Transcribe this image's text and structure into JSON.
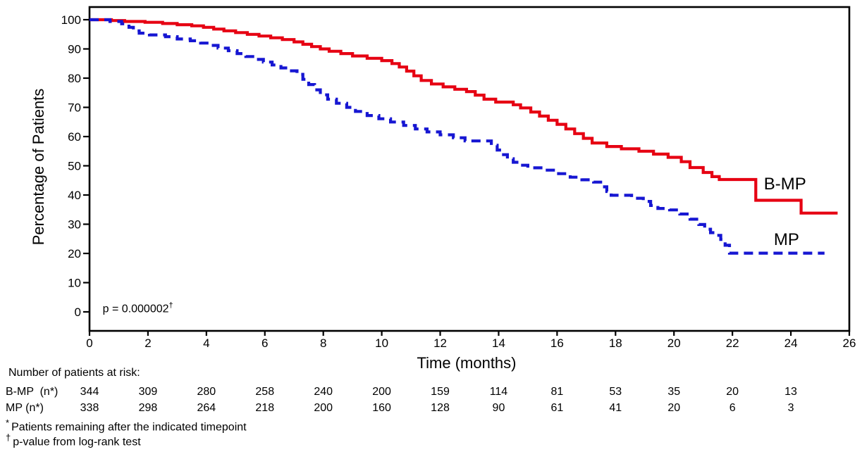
{
  "figure": {
    "p_value": {
      "text": "p = 0.000002",
      "marker": "†"
    },
    "risk_table": {
      "header": "Number of patients at risk:",
      "count_months": [
        0,
        2,
        4,
        6,
        8,
        10,
        12,
        14,
        16,
        18,
        20,
        22,
        24
      ],
      "rows": [
        {
          "label": "B-MP  (n*)",
          "counts": [
            344,
            309,
            280,
            258,
            240,
            200,
            159,
            114,
            81,
            53,
            35,
            20,
            13
          ]
        },
        {
          "label": "MP (n*)",
          "counts": [
            338,
            298,
            264,
            218,
            200,
            160,
            128,
            90,
            61,
            41,
            20,
            6,
            3
          ]
        }
      ]
    },
    "footnotes": [
      {
        "marker": "*",
        "text": "Patients remaining after the indicated timepoint"
      },
      {
        "marker": "†",
        "text": "p-value from log-rank test"
      }
    ]
  },
  "chart_data": {
    "type": "line",
    "subtype": "kaplan-meier-step",
    "title": "",
    "xlabel": "Time (months)",
    "ylabel": "Percentage of Patients",
    "xlim": [
      0,
      26
    ],
    "ylim": [
      0,
      100
    ],
    "x_ticks": [
      0,
      2,
      4,
      6,
      8,
      10,
      12,
      14,
      16,
      18,
      20,
      22,
      24,
      26
    ],
    "y_ticks": [
      0,
      10,
      20,
      30,
      40,
      50,
      60,
      70,
      80,
      90,
      100
    ],
    "grid": false,
    "legend_position": "inline-right",
    "annotation": {
      "text": "p = 0.000002",
      "marker": "†",
      "x": 0.45,
      "y": 1.5
    },
    "series": [
      {
        "name": "B-MP",
        "color": "#e60012",
        "style": "solid",
        "line_width": 4.2,
        "label_pos": {
          "x": 23.8,
          "y": 43.5
        },
        "points": [
          [
            0,
            100
          ],
          [
            0.75,
            100
          ],
          [
            0.75,
            99.7
          ],
          [
            1.2,
            99.4
          ],
          [
            1.9,
            99.1
          ],
          [
            2.5,
            98.7
          ],
          [
            3,
            98.3
          ],
          [
            3.5,
            97.9
          ],
          [
            3.9,
            97.4
          ],
          [
            4.25,
            96.8
          ],
          [
            4.6,
            96.2
          ],
          [
            5,
            95.6
          ],
          [
            5.4,
            95
          ],
          [
            5.8,
            94.4
          ],
          [
            6.2,
            93.8
          ],
          [
            6.6,
            93.2
          ],
          [
            7,
            92.4
          ],
          [
            7.3,
            91.6
          ],
          [
            7.6,
            90.8
          ],
          [
            7.9,
            90
          ],
          [
            8.2,
            89.2
          ],
          [
            8.6,
            88.4
          ],
          [
            9,
            87.6
          ],
          [
            9.5,
            86.8
          ],
          [
            10,
            86
          ],
          [
            10.35,
            85
          ],
          [
            10.6,
            83.8
          ],
          [
            10.85,
            82.4
          ],
          [
            11.1,
            80.8
          ],
          [
            11.35,
            79.2
          ],
          [
            11.7,
            78
          ],
          [
            12.1,
            77
          ],
          [
            12.5,
            76.2
          ],
          [
            12.9,
            75.4
          ],
          [
            13.2,
            74.2
          ],
          [
            13.5,
            72.8
          ],
          [
            13.9,
            71.8
          ],
          [
            14.5,
            70.9
          ],
          [
            14.75,
            69.8
          ],
          [
            15.1,
            68.4
          ],
          [
            15.4,
            67
          ],
          [
            15.7,
            65.6
          ],
          [
            16,
            64.2
          ],
          [
            16.3,
            62.6
          ],
          [
            16.6,
            61
          ],
          [
            16.9,
            59.4
          ],
          [
            17.2,
            57.8
          ],
          [
            17.7,
            56.6
          ],
          [
            18.2,
            55.8
          ],
          [
            18.8,
            55
          ],
          [
            19.3,
            54
          ],
          [
            19.8,
            52.9
          ],
          [
            20.25,
            51.4
          ],
          [
            20.55,
            49.4
          ],
          [
            21,
            47.7
          ],
          [
            21.3,
            46.3
          ],
          [
            21.55,
            45.3
          ],
          [
            22.8,
            38.2
          ],
          [
            24.35,
            33.8
          ],
          [
            25.6,
            33.8
          ]
        ]
      },
      {
        "name": "MP",
        "color": "#1616d2",
        "style": "dashed",
        "line_width": 4.2,
        "label_pos": {
          "x": 23.85,
          "y": 24.5
        },
        "points": [
          [
            0,
            100
          ],
          [
            0.7,
            100
          ],
          [
            0.7,
            99.4
          ],
          [
            1.1,
            98.6
          ],
          [
            1.35,
            97.4
          ],
          [
            1.5,
            96.2
          ],
          [
            1.7,
            95.4
          ],
          [
            2.05,
            94.8
          ],
          [
            2.6,
            94.2
          ],
          [
            3,
            93.4
          ],
          [
            3.45,
            92.8
          ],
          [
            3.8,
            92
          ],
          [
            4.1,
            91.2
          ],
          [
            4.4,
            90.3
          ],
          [
            4.75,
            89.4
          ],
          [
            5.05,
            88.4
          ],
          [
            5.35,
            87.4
          ],
          [
            5.65,
            86.4
          ],
          [
            5.95,
            85.5
          ],
          [
            6.25,
            84.5
          ],
          [
            6.55,
            83.5
          ],
          [
            6.85,
            82.5
          ],
          [
            7.1,
            81.3
          ],
          [
            7.3,
            79.6
          ],
          [
            7.5,
            77.8
          ],
          [
            7.7,
            76
          ],
          [
            7.9,
            74.3
          ],
          [
            8.15,
            72.8
          ],
          [
            8.45,
            71.4
          ],
          [
            8.8,
            70
          ],
          [
            9.1,
            68.6
          ],
          [
            9.5,
            67.2
          ],
          [
            9.9,
            66.1
          ],
          [
            10.3,
            65
          ],
          [
            10.75,
            63.8
          ],
          [
            11.15,
            62.6
          ],
          [
            11.55,
            61.6
          ],
          [
            12,
            60.6
          ],
          [
            12.45,
            59.6
          ],
          [
            12.85,
            58.5
          ],
          [
            13.75,
            57
          ],
          [
            13.95,
            55.4
          ],
          [
            14.1,
            53.8
          ],
          [
            14.3,
            52.4
          ],
          [
            14.5,
            51.2
          ],
          [
            14.75,
            50.2
          ],
          [
            15,
            49.3
          ],
          [
            15.6,
            48.5
          ],
          [
            16.05,
            47.3
          ],
          [
            16.45,
            46.1
          ],
          [
            16.85,
            45.2
          ],
          [
            17.25,
            44.4
          ],
          [
            17.55,
            42.8
          ],
          [
            17.7,
            41.2
          ],
          [
            17.85,
            39.9
          ],
          [
            18.55,
            38.9
          ],
          [
            18.95,
            37.8
          ],
          [
            19.2,
            36.4
          ],
          [
            19.45,
            35.4
          ],
          [
            19.85,
            34.9
          ],
          [
            20.2,
            33.5
          ],
          [
            20.55,
            31.7
          ],
          [
            20.85,
            29.9
          ],
          [
            21.05,
            28.3
          ],
          [
            21.25,
            27.1
          ],
          [
            21.45,
            26.2
          ],
          [
            21.6,
            24.8
          ],
          [
            21.75,
            22.8
          ],
          [
            21.9,
            20.1
          ],
          [
            25.15,
            20.1
          ]
        ]
      }
    ]
  }
}
